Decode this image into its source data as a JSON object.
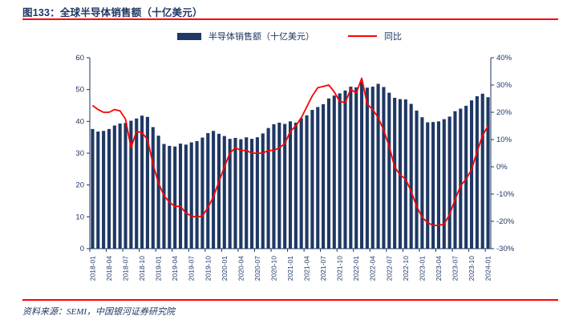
{
  "figure": {
    "title": "图133：全球半导体销售额（十亿美元）",
    "source": "资料来源：SEMI，中国银河证券研究院"
  },
  "legend": {
    "bar_label": "半导体销售额（十亿美元）",
    "line_label": "同比"
  },
  "colors": {
    "navy": "#1F3864",
    "bar": "#1F3864",
    "line": "#FF0000",
    "axis": "#17375E",
    "rule": "#FF0000"
  },
  "chart_data": {
    "type": "bar",
    "combo": "bar+line, dual axis",
    "title": "全球半导体销售额（十亿美元）",
    "grid": false,
    "legend_position": "top",
    "x_label_every": 3,
    "categories": [
      "2018-01",
      "2018-02",
      "2018-03",
      "2018-04",
      "2018-05",
      "2018-06",
      "2018-07",
      "2018-08",
      "2018-09",
      "2018-10",
      "2018-11",
      "2018-12",
      "2019-01",
      "2019-02",
      "2019-03",
      "2019-04",
      "2019-05",
      "2019-06",
      "2019-07",
      "2019-08",
      "2019-09",
      "2019-10",
      "2019-11",
      "2019-12",
      "2020-01",
      "2020-02",
      "2020-03",
      "2020-04",
      "2020-05",
      "2020-06",
      "2020-07",
      "2020-08",
      "2020-09",
      "2020-10",
      "2020-11",
      "2020-12",
      "2021-01",
      "2021-02",
      "2021-03",
      "2021-04",
      "2021-05",
      "2021-06",
      "2021-07",
      "2021-08",
      "2021-09",
      "2021-10",
      "2021-11",
      "2021-12",
      "2022-01",
      "2022-02",
      "2022-03",
      "2022-04",
      "2022-05",
      "2022-06",
      "2022-07",
      "2022-08",
      "2022-09",
      "2022-10",
      "2022-11",
      "2022-12",
      "2023-01",
      "2023-02",
      "2023-03",
      "2023-04",
      "2023-05",
      "2023-06",
      "2023-07",
      "2023-08",
      "2023-09",
      "2023-10",
      "2023-11",
      "2023-12",
      "2024-01"
    ],
    "series": [
      {
        "name": "半导体销售额（十亿美元）",
        "type": "bar",
        "axis": "left",
        "values": [
          37.6,
          36.8,
          37.0,
          37.6,
          38.7,
          39.3,
          39.5,
          40.2,
          40.9,
          41.8,
          41.4,
          38.2,
          35.5,
          32.9,
          32.3,
          32.1,
          33.0,
          32.7,
          33.4,
          33.8,
          34.9,
          36.3,
          37.0,
          36.1,
          35.4,
          34.5,
          34.8,
          34.4,
          35.0,
          34.5,
          35.0,
          36.2,
          37.9,
          39.1,
          39.6,
          39.2,
          40.0,
          39.6,
          41.0,
          41.9,
          43.6,
          44.5,
          45.4,
          47.2,
          48.1,
          48.8,
          49.7,
          50.9,
          50.7,
          52.5,
          50.6,
          50.9,
          51.8,
          50.8,
          49.0,
          47.4,
          47.0,
          46.9,
          45.5,
          43.4,
          41.3,
          39.7,
          39.8,
          40.0,
          40.7,
          41.5,
          43.2,
          44.0,
          44.9,
          46.6,
          47.9,
          48.7,
          47.6
        ]
      },
      {
        "name": "同比",
        "type": "line",
        "axis": "right",
        "values": [
          22.5,
          21.0,
          20.0,
          20.0,
          21.0,
          20.5,
          17.5,
          7.0,
          13.0,
          12.5,
          10.0,
          1.0,
          -6.0,
          -10.5,
          -13.0,
          -14.5,
          -14.5,
          -17.0,
          -18.0,
          -18.5,
          -18.0,
          -15.0,
          -11.0,
          -5.5,
          0.0,
          5.0,
          7.0,
          6.0,
          6.0,
          5.0,
          5.0,
          5.0,
          6.0,
          6.0,
          7.0,
          8.5,
          13.0,
          15.0,
          18.0,
          22.0,
          26.0,
          29.0,
          29.5,
          30.0,
          27.5,
          24.0,
          23.5,
          28.5,
          27.0,
          32.5,
          23.0,
          21.0,
          18.0,
          13.5,
          7.5,
          0.0,
          -3.0,
          -4.5,
          -9.0,
          -14.5,
          -18.5,
          -20.5,
          -21.5,
          -21.5,
          -21.0,
          -17.5,
          -12.0,
          -7.0,
          -4.5,
          -1.0,
          5.5,
          11.5,
          15.0
        ]
      }
    ],
    "left_axis": {
      "min": 0,
      "max": 60,
      "tick_values": [
        0,
        10,
        20,
        30,
        40,
        50,
        60
      ],
      "tick_labels": [
        "0",
        "10",
        "20",
        "30",
        "40",
        "50",
        "60"
      ]
    },
    "right_axis": {
      "min": -30,
      "max": 40,
      "tick_values": [
        -30,
        -20,
        -10,
        0,
        10,
        20,
        30,
        40
      ],
      "tick_labels": [
        "-30%",
        "-20%",
        "-10%",
        "0%",
        "10%",
        "20%",
        "30%",
        "40%"
      ]
    }
  }
}
